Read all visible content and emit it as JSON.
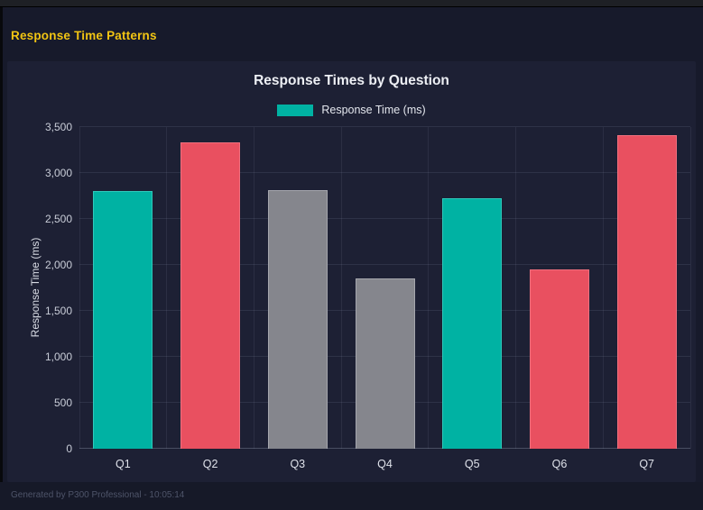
{
  "header": {
    "title": "Response Time Patterns"
  },
  "chart": {
    "title": "Response Times by Question",
    "legend_label": "Response Time (ms)"
  },
  "footer": {
    "text": "Generated by P300 Professional - 10:05:14"
  },
  "colors": {
    "accent_yellow": "#f2c513",
    "teal": "#00b2a3",
    "red": "#e95060",
    "gray": "#85868d",
    "panel_bg": "#1d2034",
    "page_bg": "#171a2b"
  },
  "chart_data": {
    "type": "bar",
    "title": "Response Times by Question",
    "categories": [
      "Q1",
      "Q2",
      "Q3",
      "Q4",
      "Q5",
      "Q6",
      "Q7"
    ],
    "series": [
      {
        "name": "Response Time (ms)",
        "values": [
          2800,
          3330,
          2810,
          1850,
          2730,
          1950,
          3410
        ]
      }
    ],
    "bar_colors": [
      "#00b2a3",
      "#e95060",
      "#85868d",
      "#85868d",
      "#00b2a3",
      "#e95060",
      "#e95060"
    ],
    "bar_border_colors": [
      "#2ec9bb",
      "#f1707e",
      "#a5a6ad",
      "#a5a6ad",
      "#2ec9bb",
      "#f1707e",
      "#f1707e"
    ],
    "xlabel": "",
    "ylabel": "Response Time (ms)",
    "ylim": [
      0,
      3500
    ],
    "ytick_step": 500,
    "ytick_labels": [
      "0",
      "500",
      "1,000",
      "1,500",
      "2,000",
      "2,500",
      "3,000",
      "3,500"
    ],
    "legend_position": "top",
    "grid": true
  }
}
